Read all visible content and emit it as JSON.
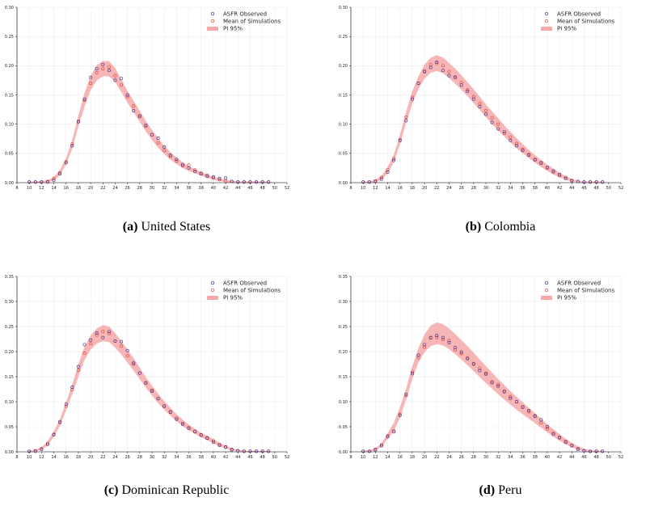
{
  "chart_data": [
    {
      "type": "scatter",
      "label": "(a)",
      "title": "United States",
      "xlim": [
        8,
        52
      ],
      "ylim": [
        0,
        0.3
      ],
      "xticks": [
        8,
        10,
        12,
        14,
        16,
        18,
        20,
        22,
        24,
        26,
        28,
        30,
        32,
        34,
        36,
        38,
        40,
        42,
        44,
        46,
        48,
        50,
        52
      ],
      "yticks": [
        "0.00",
        "0.05",
        "0.10",
        "0.15",
        "0.20",
        "0.25",
        "0.30"
      ],
      "legend": [
        "ASFR Observed",
        "Mean of Simulations",
        "PI 95%"
      ],
      "legend_position": "top-right",
      "x": [
        10,
        11,
        12,
        13,
        14,
        15,
        16,
        17,
        18,
        19,
        20,
        21,
        22,
        23,
        24,
        25,
        26,
        27,
        28,
        29,
        30,
        31,
        32,
        33,
        34,
        35,
        36,
        37,
        38,
        39,
        40,
        41,
        42,
        43,
        44,
        45,
        46,
        47,
        48,
        49
      ],
      "observed": [
        0.001,
        0.001,
        0.001,
        0.001,
        0.004,
        0.015,
        0.034,
        0.063,
        0.104,
        0.143,
        0.18,
        0.195,
        0.202,
        0.192,
        0.175,
        0.178,
        0.15,
        0.123,
        0.113,
        0.098,
        0.082,
        0.076,
        0.061,
        0.047,
        0.04,
        0.031,
        0.025,
        0.019,
        0.015,
        0.011,
        0.01,
        0.007,
        0.008,
        0.002,
        0.001,
        0.001,
        0.001,
        0.001,
        0.001,
        0.001
      ],
      "simulated": [
        0.001,
        0.001,
        0.001,
        0.002,
        0.007,
        0.017,
        0.036,
        0.066,
        0.105,
        0.141,
        0.17,
        0.188,
        0.195,
        0.198,
        0.183,
        0.167,
        0.147,
        0.131,
        0.115,
        0.097,
        0.082,
        0.068,
        0.055,
        0.045,
        0.037,
        0.029,
        0.03,
        0.022,
        0.017,
        0.013,
        0.008,
        0.005,
        0.003,
        0.002,
        0.001,
        0.001,
        0.001,
        0.001,
        0.001,
        0.001
      ],
      "pi_lower": [
        0.0,
        0.0,
        0.0,
        0.001,
        0.004,
        0.013,
        0.031,
        0.058,
        0.096,
        0.13,
        0.158,
        0.175,
        0.182,
        0.182,
        0.172,
        0.155,
        0.137,
        0.12,
        0.104,
        0.088,
        0.073,
        0.06,
        0.049,
        0.039,
        0.032,
        0.025,
        0.02,
        0.016,
        0.012,
        0.008,
        0.005,
        0.003,
        0.001,
        0.0,
        0.0,
        0.0,
        0.0,
        0.0,
        0.0,
        0.0
      ],
      "pi_upper": [
        0.002,
        0.002,
        0.003,
        0.004,
        0.01,
        0.022,
        0.042,
        0.073,
        0.114,
        0.153,
        0.183,
        0.201,
        0.208,
        0.208,
        0.196,
        0.177,
        0.157,
        0.14,
        0.123,
        0.106,
        0.09,
        0.076,
        0.063,
        0.052,
        0.043,
        0.035,
        0.028,
        0.023,
        0.018,
        0.014,
        0.01,
        0.007,
        0.005,
        0.003,
        0.002,
        0.002,
        0.002,
        0.002,
        0.002,
        0.002
      ]
    },
    {
      "type": "scatter",
      "label": "(b)",
      "title": "Colombia",
      "xlim": [
        8,
        52
      ],
      "ylim": [
        0,
        0.3
      ],
      "xticks": [
        8,
        10,
        12,
        14,
        16,
        18,
        20,
        22,
        24,
        26,
        28,
        30,
        32,
        34,
        36,
        38,
        40,
        42,
        44,
        46,
        48,
        50,
        52
      ],
      "yticks": [
        "0.00",
        "0.05",
        "0.10",
        "0.15",
        "0.20",
        "0.25",
        "0.30"
      ],
      "legend": [
        "ASFR Observed",
        "Mean of Simulations",
        "PI 95%"
      ],
      "legend_position": "top-right",
      "x": [
        10,
        11,
        12,
        13,
        14,
        15,
        16,
        17,
        18,
        19,
        20,
        21,
        22,
        23,
        24,
        25,
        26,
        27,
        28,
        29,
        30,
        31,
        32,
        33,
        34,
        35,
        36,
        37,
        38,
        39,
        40,
        41,
        42,
        43,
        44,
        45,
        46,
        47,
        48,
        49
      ],
      "observed": [
        0.001,
        0.001,
        0.002,
        0.006,
        0.018,
        0.038,
        0.072,
        0.106,
        0.143,
        0.17,
        0.19,
        0.197,
        0.206,
        0.192,
        0.183,
        0.18,
        0.167,
        0.156,
        0.143,
        0.13,
        0.117,
        0.103,
        0.092,
        0.087,
        0.072,
        0.063,
        0.055,
        0.047,
        0.039,
        0.034,
        0.026,
        0.02,
        0.014,
        0.007,
        0.003,
        0.002,
        0.001,
        0.001,
        0.001,
        0.001
      ],
      "simulated": [
        0.001,
        0.001,
        0.003,
        0.009,
        0.022,
        0.041,
        0.074,
        0.112,
        0.146,
        0.17,
        0.191,
        0.202,
        0.204,
        0.2,
        0.19,
        0.181,
        0.171,
        0.159,
        0.147,
        0.135,
        0.123,
        0.111,
        0.1,
        0.084,
        0.078,
        0.067,
        0.057,
        0.048,
        0.04,
        0.033,
        0.025,
        0.018,
        0.012,
        0.009,
        0.004,
        0.002,
        0.001,
        0.001,
        0.001,
        0.001
      ],
      "pi_lower": [
        0.0,
        0.0,
        0.001,
        0.005,
        0.016,
        0.035,
        0.066,
        0.102,
        0.135,
        0.16,
        0.178,
        0.188,
        0.191,
        0.187,
        0.179,
        0.169,
        0.159,
        0.148,
        0.136,
        0.124,
        0.112,
        0.1,
        0.089,
        0.079,
        0.069,
        0.059,
        0.05,
        0.042,
        0.034,
        0.027,
        0.02,
        0.014,
        0.009,
        0.005,
        0.002,
        0.001,
        0.0,
        0.0,
        0.0,
        0.0
      ],
      "pi_upper": [
        0.002,
        0.002,
        0.005,
        0.012,
        0.027,
        0.048,
        0.082,
        0.121,
        0.156,
        0.182,
        0.202,
        0.214,
        0.218,
        0.214,
        0.205,
        0.195,
        0.184,
        0.172,
        0.16,
        0.147,
        0.134,
        0.122,
        0.11,
        0.098,
        0.087,
        0.076,
        0.066,
        0.056,
        0.047,
        0.039,
        0.031,
        0.024,
        0.017,
        0.011,
        0.006,
        0.003,
        0.002,
        0.002,
        0.002,
        0.002
      ]
    },
    {
      "type": "scatter",
      "label": "(c)",
      "title": "Dominican Republic",
      "xlim": [
        8,
        52
      ],
      "ylim": [
        0,
        0.35
      ],
      "xticks": [
        8,
        10,
        12,
        14,
        16,
        18,
        20,
        22,
        24,
        26,
        28,
        30,
        32,
        34,
        36,
        38,
        40,
        42,
        44,
        46,
        48,
        50,
        52
      ],
      "yticks": [
        "0.00",
        "0.05",
        "0.10",
        "0.15",
        "0.20",
        "0.25",
        "0.30",
        "0.35"
      ],
      "legend": [
        "ASFR Observed",
        "Mean of Simulations",
        "PI 95%"
      ],
      "legend_position": "top-right",
      "x": [
        10,
        11,
        12,
        13,
        14,
        15,
        16,
        17,
        18,
        19,
        20,
        21,
        22,
        23,
        24,
        25,
        26,
        27,
        28,
        29,
        30,
        31,
        32,
        33,
        34,
        35,
        36,
        37,
        38,
        39,
        40,
        41,
        42,
        43,
        44,
        45,
        46,
        47,
        48,
        49
      ],
      "observed": [
        0.001,
        0.001,
        0.005,
        0.015,
        0.034,
        0.06,
        0.095,
        0.129,
        0.17,
        0.214,
        0.223,
        0.237,
        0.228,
        0.24,
        0.221,
        0.22,
        0.202,
        0.177,
        0.157,
        0.137,
        0.121,
        0.106,
        0.091,
        0.079,
        0.065,
        0.055,
        0.047,
        0.04,
        0.033,
        0.027,
        0.019,
        0.013,
        0.009,
        0.004,
        0.002,
        0.001,
        0.001,
        0.001,
        0.001,
        0.001
      ],
      "simulated": [
        0.001,
        0.002,
        0.006,
        0.017,
        0.035,
        0.058,
        0.091,
        0.124,
        0.163,
        0.197,
        0.216,
        0.233,
        0.24,
        0.236,
        0.221,
        0.211,
        0.192,
        0.175,
        0.157,
        0.138,
        0.123,
        0.106,
        0.092,
        0.08,
        0.067,
        0.057,
        0.048,
        0.041,
        0.034,
        0.028,
        0.022,
        0.015,
        0.01,
        0.005,
        0.002,
        0.001,
        0.001,
        0.001,
        0.001,
        0.001
      ],
      "pi_lower": [
        0.0,
        0.001,
        0.004,
        0.013,
        0.03,
        0.052,
        0.083,
        0.115,
        0.15,
        0.183,
        0.204,
        0.216,
        0.221,
        0.219,
        0.208,
        0.194,
        0.178,
        0.162,
        0.145,
        0.128,
        0.112,
        0.097,
        0.084,
        0.072,
        0.061,
        0.051,
        0.043,
        0.036,
        0.029,
        0.023,
        0.017,
        0.011,
        0.007,
        0.003,
        0.001,
        0.0,
        0.0,
        0.0,
        0.0,
        0.0
      ],
      "pi_upper": [
        0.002,
        0.004,
        0.009,
        0.021,
        0.041,
        0.065,
        0.099,
        0.134,
        0.174,
        0.21,
        0.232,
        0.246,
        0.253,
        0.25,
        0.237,
        0.221,
        0.204,
        0.187,
        0.168,
        0.149,
        0.132,
        0.116,
        0.101,
        0.088,
        0.075,
        0.064,
        0.054,
        0.046,
        0.038,
        0.032,
        0.025,
        0.018,
        0.012,
        0.007,
        0.004,
        0.002,
        0.002,
        0.002,
        0.002,
        0.002
      ]
    },
    {
      "type": "scatter",
      "label": "(d)",
      "title": "Peru",
      "xlim": [
        8,
        52
      ],
      "ylim": [
        0,
        0.35
      ],
      "xticks": [
        8,
        10,
        12,
        14,
        16,
        18,
        20,
        22,
        24,
        26,
        28,
        30,
        32,
        34,
        36,
        38,
        40,
        42,
        44,
        46,
        48,
        50,
        52
      ],
      "yticks": [
        "0.00",
        "0.05",
        "0.10",
        "0.15",
        "0.20",
        "0.25",
        "0.30",
        "0.35"
      ],
      "legend": [
        "ASFR Observed",
        "Mean of Simulations",
        "PI 95%"
      ],
      "legend_position": "top-right",
      "x": [
        10,
        11,
        12,
        13,
        14,
        15,
        16,
        17,
        18,
        19,
        20,
        21,
        22,
        23,
        24,
        25,
        26,
        27,
        28,
        29,
        30,
        31,
        32,
        33,
        34,
        35,
        36,
        37,
        38,
        39,
        40,
        41,
        42,
        43,
        44,
        45,
        46,
        47,
        48,
        49
      ],
      "observed": [
        0.001,
        0.001,
        0.004,
        0.012,
        0.03,
        0.04,
        0.073,
        0.115,
        0.156,
        0.193,
        0.214,
        0.228,
        0.232,
        0.228,
        0.218,
        0.208,
        0.199,
        0.186,
        0.175,
        0.162,
        0.155,
        0.138,
        0.131,
        0.12,
        0.107,
        0.1,
        0.089,
        0.082,
        0.071,
        0.064,
        0.05,
        0.035,
        0.028,
        0.019,
        0.012,
        0.005,
        0.002,
        0.001,
        0.001,
        0.001
      ],
      "simulated": [
        0.001,
        0.001,
        0.005,
        0.014,
        0.032,
        0.042,
        0.075,
        0.112,
        0.159,
        0.188,
        0.209,
        0.227,
        0.228,
        0.224,
        0.222,
        0.203,
        0.196,
        0.187,
        0.176,
        0.167,
        0.157,
        0.14,
        0.134,
        0.121,
        0.11,
        0.1,
        0.09,
        0.08,
        0.072,
        0.058,
        0.046,
        0.038,
        0.029,
        0.021,
        0.013,
        0.006,
        0.002,
        0.001,
        0.001,
        0.001
      ],
      "pi_lower": [
        0.0,
        0.0,
        0.003,
        0.01,
        0.026,
        0.042,
        0.068,
        0.104,
        0.145,
        0.178,
        0.199,
        0.211,
        0.215,
        0.212,
        0.205,
        0.195,
        0.184,
        0.173,
        0.161,
        0.149,
        0.137,
        0.126,
        0.115,
        0.104,
        0.094,
        0.084,
        0.075,
        0.066,
        0.057,
        0.048,
        0.039,
        0.03,
        0.022,
        0.015,
        0.009,
        0.004,
        0.001,
        0.0,
        0.0,
        0.0
      ],
      "pi_upper": [
        0.002,
        0.003,
        0.007,
        0.017,
        0.037,
        0.058,
        0.089,
        0.126,
        0.17,
        0.207,
        0.234,
        0.252,
        0.258,
        0.255,
        0.246,
        0.235,
        0.223,
        0.211,
        0.198,
        0.184,
        0.171,
        0.158,
        0.145,
        0.133,
        0.121,
        0.11,
        0.099,
        0.088,
        0.077,
        0.066,
        0.055,
        0.045,
        0.035,
        0.026,
        0.018,
        0.011,
        0.006,
        0.003,
        0.002,
        0.002
      ]
    }
  ],
  "colors": {
    "observed": "#3b2a8c",
    "simulated": "#d9413a",
    "band": "#f4a9a8",
    "axis": "#000000",
    "grid": "#e8e8e8"
  }
}
